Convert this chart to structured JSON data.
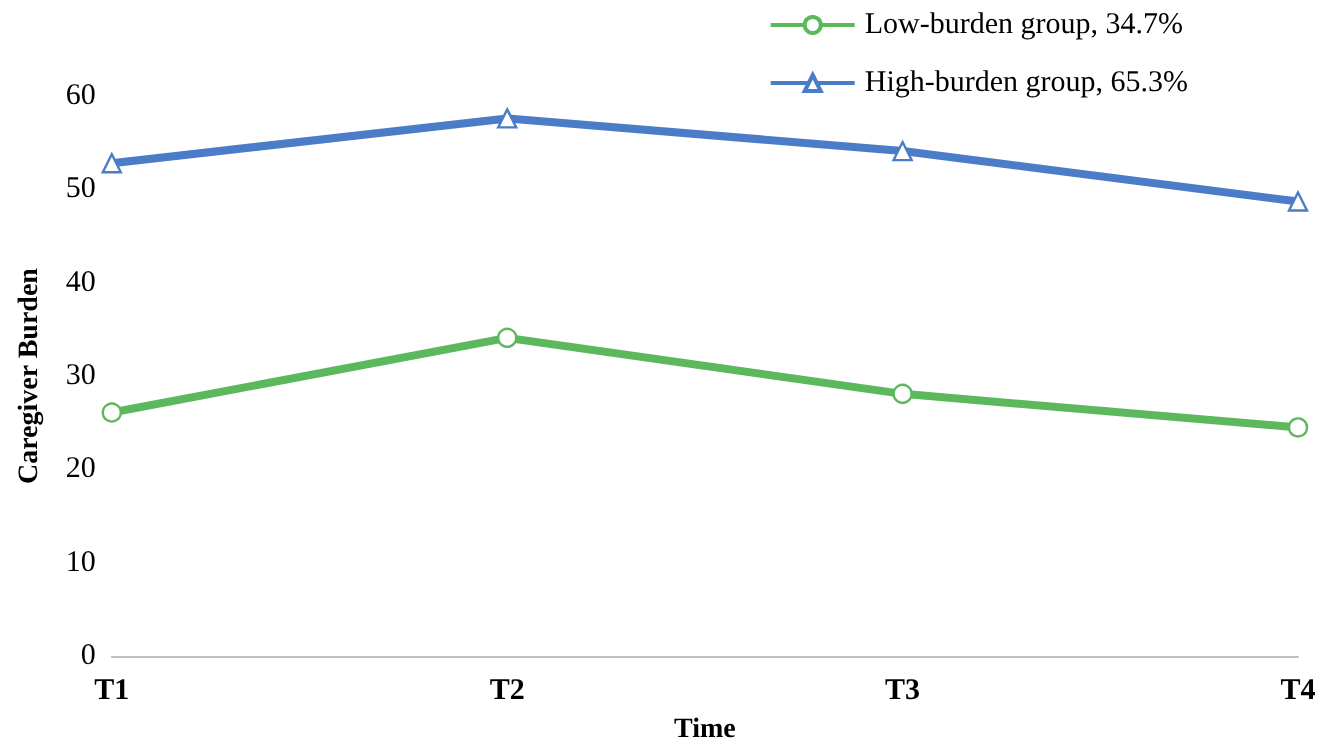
{
  "chart_data": {
    "type": "line",
    "xlabel": "Time",
    "ylabel": "Caregiver Burden",
    "categories": [
      "T1",
      "T2",
      "T3",
      "T4"
    ],
    "series": [
      {
        "name": "Low-burden group, 34.7%",
        "color": "#5cb85c",
        "marker": "circle",
        "values": [
          26.1,
          34.1,
          28.1,
          24.5
        ]
      },
      {
        "name": "High-burden group, 65.3%",
        "color": "#4a7cc7",
        "marker": "triangle",
        "values": [
          52.8,
          57.6,
          54.1,
          48.7
        ]
      }
    ],
    "ylim": [
      0,
      60
    ],
    "yticks": [
      0,
      10,
      20,
      30,
      40,
      50,
      60
    ],
    "grid": false,
    "legend": "top right"
  }
}
